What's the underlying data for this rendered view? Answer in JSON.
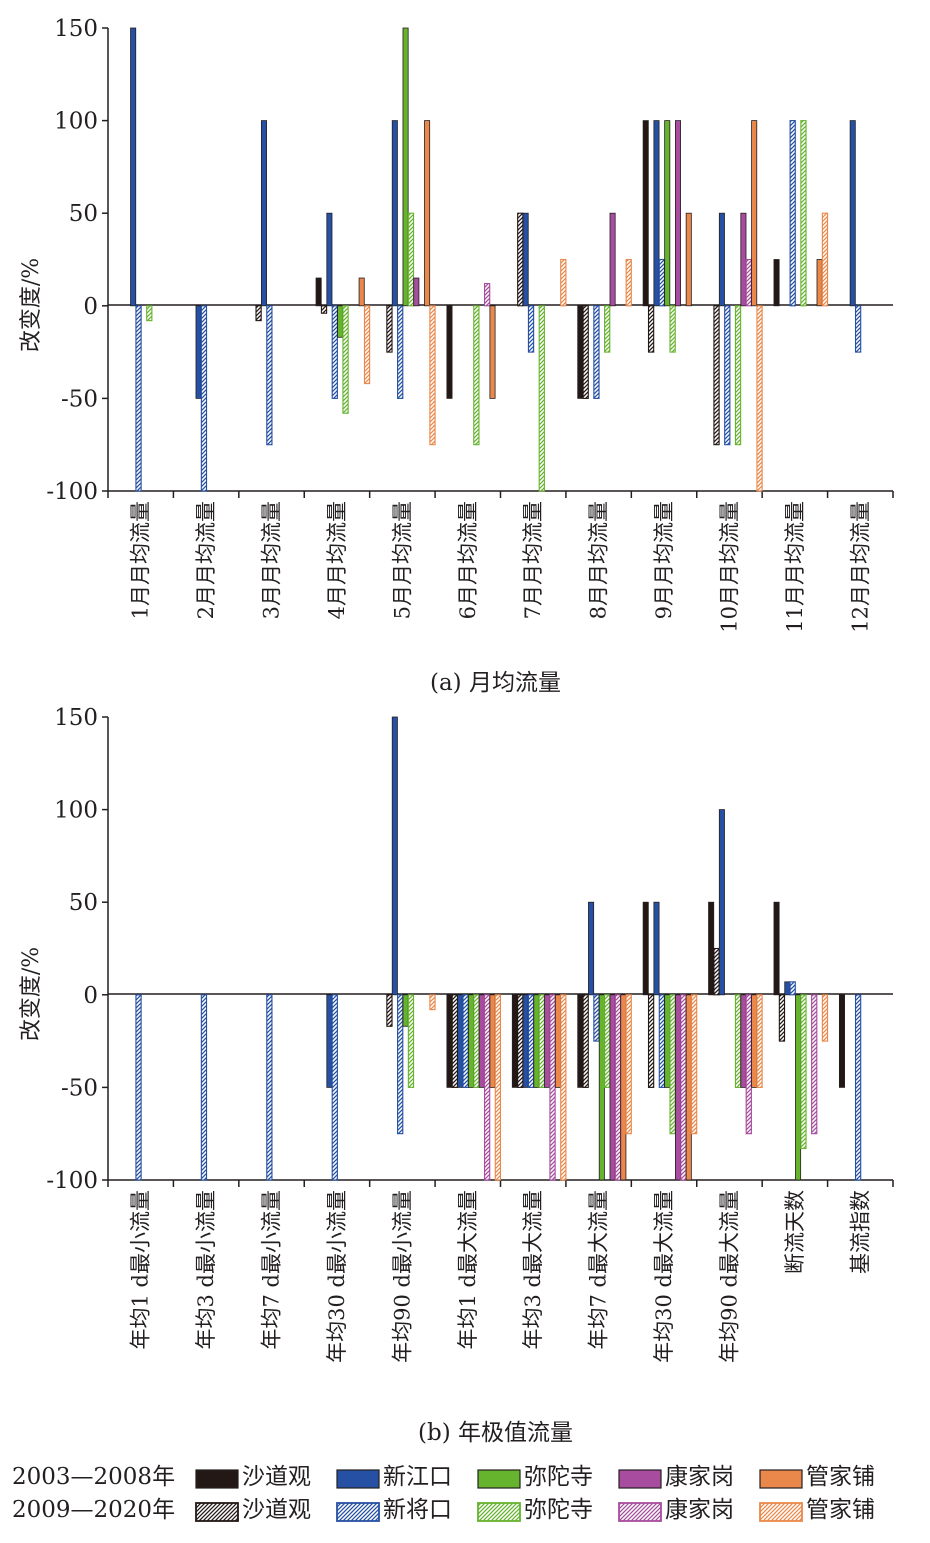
{
  "legend": {
    "period1": "2003—2008年",
    "period2": "2009—2020年",
    "row1": [
      {
        "label": "沙道观",
        "color": "#231815"
      },
      {
        "label": "新江口",
        "color": "#2650a3"
      },
      {
        "label": "弥陀寺",
        "color": "#66b32e"
      },
      {
        "label": "康家岗",
        "color": "#a74c9e"
      },
      {
        "label": "管家铺",
        "color": "#e9884a"
      }
    ],
    "row2": [
      {
        "label": "沙道观",
        "color": "#231815"
      },
      {
        "label": "新将口",
        "color": "#2650a3"
      },
      {
        "label": "弥陀寺",
        "color": "#66b32e"
      },
      {
        "label": "康家岗",
        "color": "#a74c9e"
      },
      {
        "label": "管家铺",
        "color": "#e9884a"
      }
    ]
  },
  "chart_data": [
    {
      "type": "bar",
      "title": "(a) 月均流量",
      "ylabel": "改变度/%",
      "ylim": [
        -100,
        150
      ],
      "yticks": [
        "150",
        "100",
        "50",
        "0",
        "-50",
        "-100"
      ],
      "series_style": [
        "solid",
        "hatched",
        "solid",
        "hatched",
        "solid",
        "hatched",
        "solid",
        "hatched",
        "solid",
        "hatched"
      ],
      "categories": [
        "1月月均流量",
        "2月月均流量",
        "3月月均流量",
        "4月月均流量",
        "5月月均流量",
        "6月月均流量",
        "7月月均流量",
        "8月月均流量",
        "9月月均流量",
        "10月月均流量",
        "11月月均流量",
        "12月月均流量"
      ],
      "series": [
        {
          "name": "2003—2008年 沙道观",
          "values": [
            0,
            0,
            0,
            15,
            0,
            -50,
            0,
            -50,
            100,
            0,
            25,
            0
          ]
        },
        {
          "name": "2009—2020年 沙道观",
          "values": [
            0,
            0,
            -8,
            -4,
            -25,
            0,
            50,
            -50,
            -25,
            -75,
            0,
            0
          ]
        },
        {
          "name": "2003—2008年 新江口",
          "values": [
            150,
            -50,
            100,
            50,
            100,
            0,
            50,
            0,
            100,
            50,
            0,
            100
          ]
        },
        {
          "name": "2009—2020年 新将口",
          "values": [
            -100,
            -100,
            -75,
            -50,
            -50,
            0,
            -25,
            -50,
            25,
            -75,
            100,
            -25
          ]
        },
        {
          "name": "2003—2008年 弥陀寺",
          "values": [
            0,
            0,
            0,
            -17,
            150,
            0,
            0,
            0,
            100,
            0,
            0,
            0
          ]
        },
        {
          "name": "2009—2020年 弥陀寺",
          "values": [
            -8,
            0,
            0,
            -58,
            50,
            -75,
            -100,
            -25,
            -25,
            -75,
            100,
            0
          ]
        },
        {
          "name": "2003—2008年 康家岗",
          "values": [
            0,
            0,
            0,
            0,
            15,
            0,
            0,
            50,
            100,
            50,
            0,
            0
          ]
        },
        {
          "name": "2009—2020年 康家岗",
          "values": [
            0,
            0,
            0,
            0,
            0,
            12,
            0,
            0,
            0,
            25,
            0,
            0
          ]
        },
        {
          "name": "2003—2008年 管家铺",
          "values": [
            0,
            0,
            0,
            15,
            100,
            -50,
            0,
            0,
            50,
            100,
            25,
            0
          ]
        },
        {
          "name": "2009—2020年 管家铺",
          "values": [
            0,
            0,
            0,
            -42,
            -75,
            0,
            25,
            25,
            0,
            -100,
            50,
            0
          ]
        }
      ]
    },
    {
      "type": "bar",
      "title": "(b) 年极值流量",
      "ylabel": "改变度/%",
      "ylim": [
        -100,
        150
      ],
      "yticks": [
        "150",
        "100",
        "50",
        "0",
        "-50",
        "-100"
      ],
      "series_style": [
        "solid",
        "hatched",
        "solid",
        "hatched",
        "solid",
        "hatched",
        "solid",
        "hatched",
        "solid",
        "hatched"
      ],
      "categories": [
        "年均1 d最小流量",
        "年均3 d最小流量",
        "年均7 d最小流量",
        "年均30 d最小流量",
        "年均90 d最小流量",
        "年均1 d最大流量",
        "年均3 d最大流量",
        "年均7 d最大流量",
        "年均30 d最大流量",
        "年均90 d最大流量",
        "断流天数",
        "基流指数"
      ],
      "series": [
        {
          "name": "2003—2008年 沙道观",
          "values": [
            0,
            0,
            0,
            0,
            0,
            -50,
            -50,
            -50,
            50,
            50,
            50,
            -50
          ]
        },
        {
          "name": "2009—2020年 沙道观",
          "values": [
            0,
            0,
            0,
            0,
            -17,
            -50,
            -50,
            -50,
            -50,
            25,
            -25,
            0
          ]
        },
        {
          "name": "2003—2008年 新江口",
          "values": [
            0,
            0,
            0,
            -50,
            150,
            -50,
            -50,
            50,
            50,
            100,
            7,
            0
          ]
        },
        {
          "name": "2009—2020年 新将口",
          "values": [
            -100,
            -100,
            -100,
            -100,
            -75,
            -50,
            -50,
            -25,
            -50,
            0,
            7,
            -100
          ]
        },
        {
          "name": "2003—2008年 弥陀寺",
          "values": [
            0,
            0,
            0,
            0,
            -17,
            -50,
            -50,
            -100,
            -50,
            0,
            -100,
            0
          ]
        },
        {
          "name": "2009—2020年 弥陀寺",
          "values": [
            0,
            0,
            0,
            0,
            -50,
            -50,
            -50,
            -50,
            -75,
            -50,
            -83,
            0
          ]
        },
        {
          "name": "2003—2008年 康家岗",
          "values": [
            0,
            0,
            0,
            0,
            0,
            -50,
            -50,
            -100,
            -100,
            -50,
            0,
            0
          ]
        },
        {
          "name": "2009—2020年 康家岗",
          "values": [
            0,
            0,
            0,
            0,
            0,
            -100,
            -100,
            -100,
            -100,
            -75,
            -75,
            0
          ]
        },
        {
          "name": "2003—2008年 管家铺",
          "values": [
            0,
            0,
            0,
            0,
            0,
            -50,
            -50,
            -100,
            -100,
            -50,
            0,
            0
          ]
        },
        {
          "name": "2009—2020年 管家铺",
          "values": [
            0,
            0,
            0,
            0,
            -8,
            -100,
            -100,
            -75,
            -75,
            -50,
            -25,
            0
          ]
        }
      ]
    }
  ]
}
